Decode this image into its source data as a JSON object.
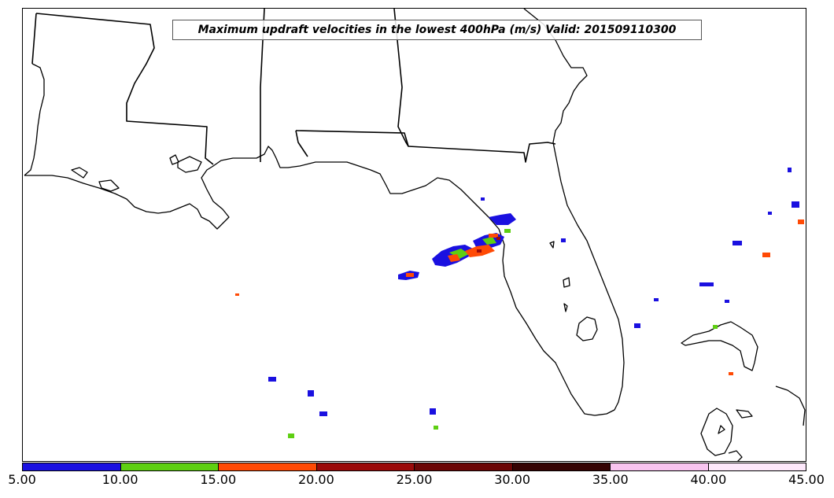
{
  "title": "Maximum updraft velocities in the lowest 400hPa (m/s) Valid: 201509110300",
  "colorbar": {
    "bins": [
      {
        "from": 5,
        "to": 10,
        "color": "#1a10e0"
      },
      {
        "from": 10,
        "to": 15,
        "color": "#5ecf12"
      },
      {
        "from": 15,
        "to": 20,
        "color": "#ff4a05"
      },
      {
        "from": 20,
        "to": 25,
        "color": "#9a0a0a"
      },
      {
        "from": 25,
        "to": 30,
        "color": "#6b0606"
      },
      {
        "from": 30,
        "to": 35,
        "color": "#350303"
      },
      {
        "from": 35,
        "to": 40,
        "color": "#f8c4f0"
      },
      {
        "from": 40,
        "to": 45,
        "color": "#fde8fb"
      }
    ],
    "tick_labels": [
      "5.00",
      "10.00",
      "15.00",
      "20.00",
      "25.00",
      "30.00",
      "35.00",
      "40.00",
      "45.00"
    ]
  },
  "map": {
    "region": "Gulf of Mexico and Florida",
    "line_color": "#000000",
    "background": "#ffffff"
  }
}
